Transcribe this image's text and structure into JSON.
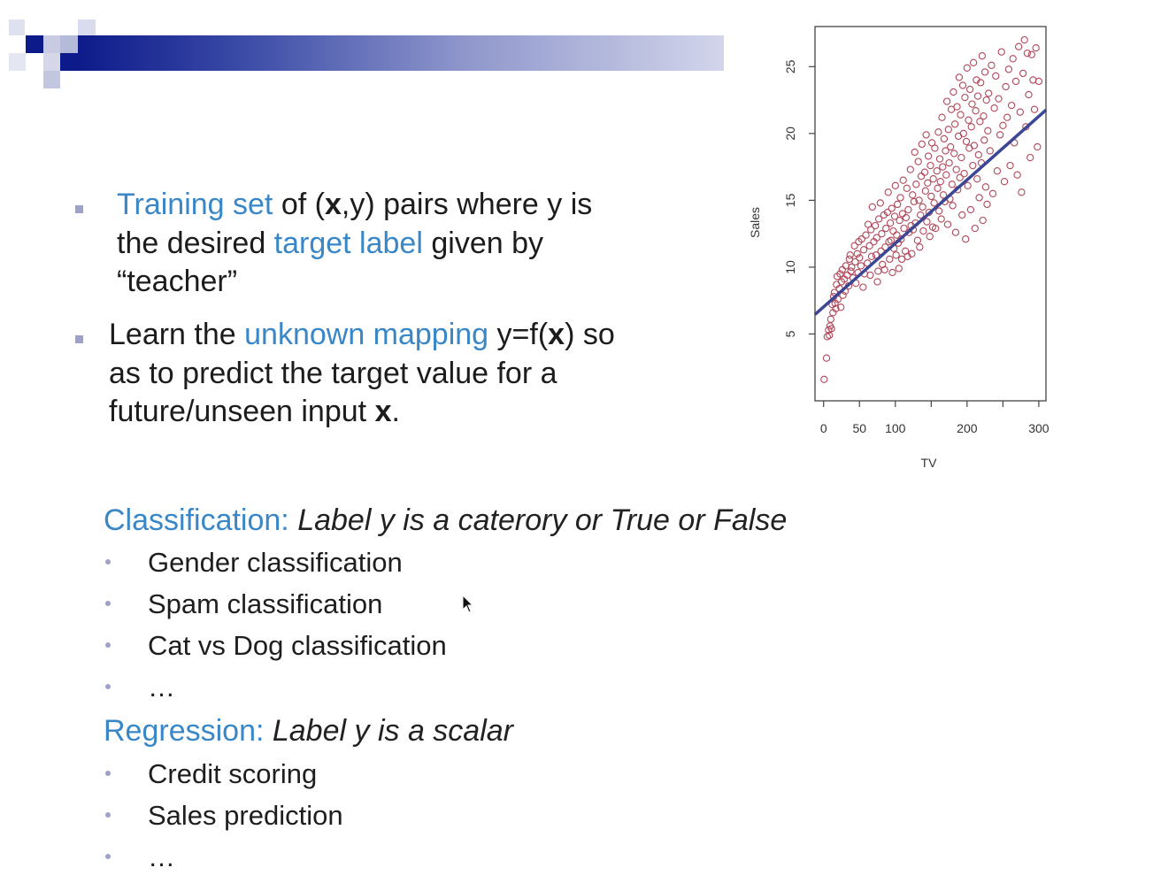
{
  "bullets": {
    "b1": {
      "hl": "Training set",
      "t1": " of (",
      "x": "x",
      "t2": ",y) pairs where y is",
      "line2_pre": "the desired ",
      "line2_hl": "target label",
      "line2_post": " given by",
      "line3": "“teacher”"
    },
    "b2": {
      "pre": "Learn the ",
      "hl": "unknown mapping",
      "mid": " y=f(",
      "x": "x",
      "post": ") so",
      "line2": "as to predict the target value for a",
      "line3_pre": "future/unseen input ",
      "line3_x": "x",
      "line3_post": "."
    }
  },
  "classification": {
    "label": "Classification:",
    "desc": " Label y is a caterory or True or False",
    "items": [
      "Gender classification",
      "Spam classification",
      "Cat vs Dog classification",
      "…"
    ]
  },
  "regression": {
    "label": "Regression:",
    "desc": " Label y is a scalar",
    "items": [
      "Credit scoring",
      "Sales prediction",
      "…"
    ]
  },
  "colors": {
    "accent_blue": "#3a87c8",
    "header_dark": "#0d1a8a",
    "point_color": "#b0485a",
    "line_color": "#3b4794"
  },
  "icons": {
    "cursor": "mouse-pointer-icon"
  },
  "chart_data": {
    "type": "scatter",
    "xlabel": "TV",
    "ylabel": "Sales",
    "xlim": [
      -12,
      310
    ],
    "ylim": [
      0,
      28
    ],
    "xticks": [
      0,
      50,
      100,
      200,
      300
    ],
    "yticks": [
      5,
      10,
      15,
      20,
      25
    ],
    "regression_line": {
      "intercept": 7.03,
      "slope": 0.0475
    },
    "points": [
      [
        0.7,
        1.6
      ],
      [
        4,
        3.2
      ],
      [
        5,
        4.8
      ],
      [
        7,
        5.3
      ],
      [
        8,
        4.9
      ],
      [
        9,
        5.6
      ],
      [
        10,
        6.1
      ],
      [
        11,
        5.4
      ],
      [
        12,
        7.2
      ],
      [
        13,
        6.6
      ],
      [
        14,
        7.8
      ],
      [
        15,
        8.1
      ],
      [
        16,
        7.3
      ],
      [
        17,
        6.9
      ],
      [
        18,
        8.7
      ],
      [
        19,
        9.3
      ],
      [
        20,
        7.6
      ],
      [
        22,
        8.4
      ],
      [
        23,
        9.5
      ],
      [
        24,
        7.0
      ],
      [
        25,
        8.9
      ],
      [
        26,
        9.8
      ],
      [
        27,
        7.9
      ],
      [
        29,
        9.1
      ],
      [
        30,
        8.2
      ],
      [
        31,
        10.1
      ],
      [
        33,
        9.4
      ],
      [
        35,
        8.6
      ],
      [
        36,
        10.6
      ],
      [
        37,
        10.9
      ],
      [
        38,
        9.7
      ],
      [
        39,
        10.0
      ],
      [
        41,
        9.2
      ],
      [
        43,
        11.6
      ],
      [
        44,
        10.4
      ],
      [
        45,
        8.8
      ],
      [
        47,
        11.0
      ],
      [
        48,
        9.6
      ],
      [
        49,
        11.9
      ],
      [
        50,
        10.7
      ],
      [
        52,
        10.1
      ],
      [
        53,
        12.1
      ],
      [
        55,
        8.5
      ],
      [
        56,
        11.3
      ],
      [
        57,
        9.5
      ],
      [
        59,
        12.4
      ],
      [
        61,
        10.3
      ],
      [
        62,
        13.2
      ],
      [
        64,
        11.6
      ],
      [
        65,
        9.4
      ],
      [
        66,
        12.8
      ],
      [
        67,
        10.8
      ],
      [
        68,
        14.5
      ],
      [
        70,
        11.9
      ],
      [
        72,
        13.1
      ],
      [
        73,
        10.9
      ],
      [
        74,
        12.2
      ],
      [
        75,
        8.9
      ],
      [
        76,
        9.7
      ],
      [
        77,
        13.6
      ],
      [
        79,
        14.8
      ],
      [
        80,
        11.2
      ],
      [
        81,
        12.5
      ],
      [
        82,
        10.2
      ],
      [
        84,
        13.9
      ],
      [
        85,
        9.8
      ],
      [
        86,
        11.5
      ],
      [
        87,
        12.9
      ],
      [
        89,
        14.1
      ],
      [
        90,
        15.6
      ],
      [
        91,
        11.9
      ],
      [
        92,
        10.6
      ],
      [
        93,
        13.3
      ],
      [
        94,
        12.0
      ],
      [
        95,
        14.4
      ],
      [
        96,
        9.6
      ],
      [
        97,
        12.7
      ],
      [
        98,
        11.4
      ],
      [
        99,
        13.8
      ],
      [
        100,
        16.1
      ],
      [
        101,
        10.9
      ],
      [
        102,
        12.4
      ],
      [
        103,
        14.7
      ],
      [
        104,
        11.8
      ],
      [
        105,
        9.9
      ],
      [
        106,
        13.5
      ],
      [
        107,
        15.2
      ],
      [
        108,
        12.1
      ],
      [
        109,
        10.6
      ],
      [
        110,
        14.0
      ],
      [
        111,
        16.5
      ],
      [
        112,
        12.9
      ],
      [
        114,
        11.2
      ],
      [
        115,
        13.7
      ],
      [
        116,
        15.9
      ],
      [
        117,
        10.8
      ],
      [
        118,
        14.3
      ],
      [
        119,
        12.6
      ],
      [
        121,
        17.3
      ],
      [
        122,
        13.1
      ],
      [
        123,
        11.0
      ],
      [
        124,
        15.4
      ],
      [
        125,
        12.8
      ],
      [
        126,
        14.9
      ],
      [
        127,
        18.6
      ],
      [
        128,
        13.3
      ],
      [
        129,
        16.2
      ],
      [
        131,
        12.0
      ],
      [
        132,
        17.9
      ],
      [
        133,
        15.0
      ],
      [
        134,
        11.5
      ],
      [
        135,
        13.9
      ],
      [
        136,
        16.8
      ],
      [
        137,
        19.2
      ],
      [
        138,
        14.5
      ],
      [
        139,
        12.7
      ],
      [
        141,
        17.1
      ],
      [
        142,
        15.7
      ],
      [
        143,
        19.9
      ],
      [
        144,
        13.4
      ],
      [
        145,
        16.3
      ],
      [
        146,
        18.3
      ],
      [
        147,
        14.1
      ],
      [
        148,
        12.3
      ],
      [
        149,
        17.6
      ],
      [
        150,
        15.3
      ],
      [
        151,
        19.3
      ],
      [
        152,
        13.0
      ],
      [
        153,
        16.6
      ],
      [
        154,
        14.8
      ],
      [
        155,
        18.9
      ],
      [
        156,
        12.9
      ],
      [
        158,
        17.2
      ],
      [
        159,
        15.9
      ],
      [
        160,
        20.1
      ],
      [
        161,
        14.2
      ],
      [
        162,
        18.1
      ],
      [
        163,
        16.4
      ],
      [
        164,
        13.6
      ],
      [
        165,
        21.2
      ],
      [
        166,
        17.5
      ],
      [
        167,
        15.4
      ],
      [
        168,
        19.6
      ],
      [
        169,
        14.9
      ],
      [
        170,
        18.7
      ],
      [
        171,
        16.9
      ],
      [
        172,
        22.4
      ],
      [
        173,
        13.2
      ],
      [
        174,
        20.3
      ],
      [
        175,
        17.8
      ],
      [
        176,
        15.1
      ],
      [
        177,
        19.0
      ],
      [
        178,
        21.8
      ],
      [
        179,
        16.2
      ],
      [
        180,
        14.6
      ],
      [
        181,
        23.1
      ],
      [
        182,
        18.5
      ],
      [
        183,
        20.7
      ],
      [
        184,
        12.6
      ],
      [
        185,
        17.3
      ],
      [
        186,
        22.0
      ],
      [
        187,
        15.8
      ],
      [
        188,
        19.8
      ],
      [
        189,
        24.2
      ],
      [
        190,
        16.7
      ],
      [
        191,
        21.4
      ],
      [
        192,
        18.2
      ],
      [
        193,
        13.9
      ],
      [
        194,
        23.6
      ],
      [
        195,
        20.0
      ],
      [
        196,
        17.0
      ],
      [
        197,
        22.7
      ],
      [
        198,
        12.1
      ],
      [
        199,
        19.4
      ],
      [
        200,
        24.9
      ],
      [
        201,
        16.1
      ],
      [
        202,
        21.0
      ],
      [
        203,
        18.9
      ],
      [
        204,
        23.3
      ],
      [
        205,
        14.3
      ],
      [
        206,
        20.5
      ],
      [
        207,
        22.2
      ],
      [
        208,
        17.6
      ],
      [
        209,
        25.3
      ],
      [
        210,
        19.1
      ],
      [
        211,
        12.9
      ],
      [
        212,
        21.7
      ],
      [
        213,
        24.0
      ],
      [
        214,
        16.6
      ],
      [
        215,
        22.8
      ],
      [
        216,
        18.4
      ],
      [
        217,
        15.2
      ],
      [
        218,
        20.9
      ],
      [
        219,
        23.8
      ],
      [
        220,
        17.8
      ],
      [
        221,
        25.8
      ],
      [
        222,
        13.5
      ],
      [
        223,
        21.3
      ],
      [
        224,
        19.5
      ],
      [
        225,
        24.6
      ],
      [
        226,
        16.0
      ],
      [
        227,
        22.5
      ],
      [
        228,
        14.7
      ],
      [
        229,
        20.2
      ],
      [
        230,
        23.0
      ],
      [
        232,
        18.7
      ],
      [
        234,
        25.1
      ],
      [
        236,
        15.5
      ],
      [
        238,
        21.9
      ],
      [
        240,
        24.3
      ],
      [
        242,
        17.2
      ],
      [
        244,
        22.6
      ],
      [
        246,
        19.9
      ],
      [
        248,
        26.1
      ],
      [
        250,
        20.6
      ],
      [
        252,
        16.4
      ],
      [
        254,
        23.5
      ],
      [
        256,
        21.2
      ],
      [
        258,
        24.8
      ],
      [
        260,
        17.6
      ],
      [
        262,
        22.1
      ],
      [
        264,
        25.6
      ],
      [
        266,
        19.3
      ],
      [
        268,
        23.9
      ],
      [
        270,
        16.9
      ],
      [
        272,
        26.5
      ],
      [
        274,
        21.6
      ],
      [
        276,
        15.6
      ],
      [
        278,
        24.5
      ],
      [
        280,
        27.0
      ],
      [
        282,
        20.5
      ],
      [
        284,
        26.0
      ],
      [
        286,
        22.9
      ],
      [
        288,
        18.2
      ],
      [
        290,
        25.9
      ],
      [
        292,
        24.0
      ],
      [
        294,
        21.8
      ],
      [
        296,
        26.4
      ],
      [
        298,
        19.0
      ],
      [
        300,
        23.9
      ]
    ]
  }
}
